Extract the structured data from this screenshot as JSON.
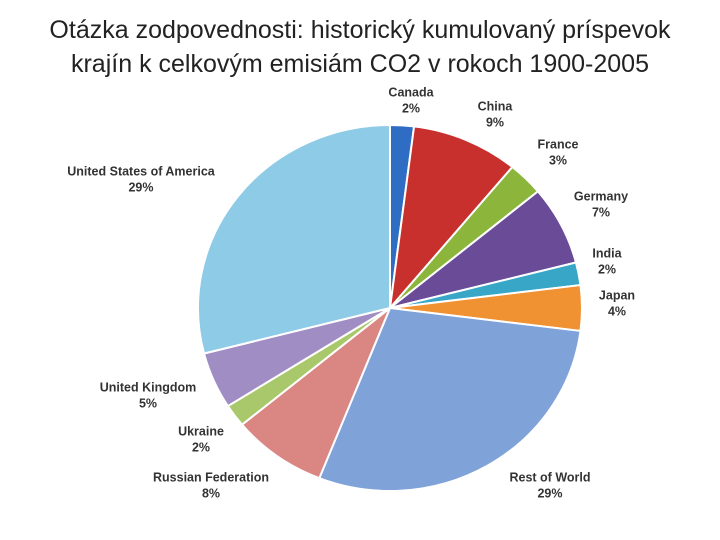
{
  "chart_data": {
    "type": "pie",
    "title": [
      "Otázka zodpovednosti: historický kumulovaný príspevok",
      "krajín k celkovým emisiám CO2 v rokoch 1900-2005"
    ],
    "categories": [
      "Canada",
      "China",
      "France",
      "Germany",
      "India",
      "Japan",
      "Rest of World",
      "Russian Federation",
      "Ukraine",
      "United Kingdom",
      "United States of America"
    ],
    "values": [
      2,
      9,
      3,
      7,
      2,
      4,
      29,
      8,
      2,
      5,
      29
    ],
    "value_labels": [
      "2%",
      "9%",
      "3%",
      "7%",
      "2%",
      "4%",
      "29%",
      "8%",
      "2%",
      "5%",
      "29%"
    ],
    "colors": [
      "#2f6cc4",
      "#c8302d",
      "#8bb53b",
      "#6a4b98",
      "#38a6c6",
      "#f09232",
      "#7fa2d9",
      "#da8683",
      "#a8c86b",
      "#a08dc3",
      "#8ecbe6"
    ]
  }
}
